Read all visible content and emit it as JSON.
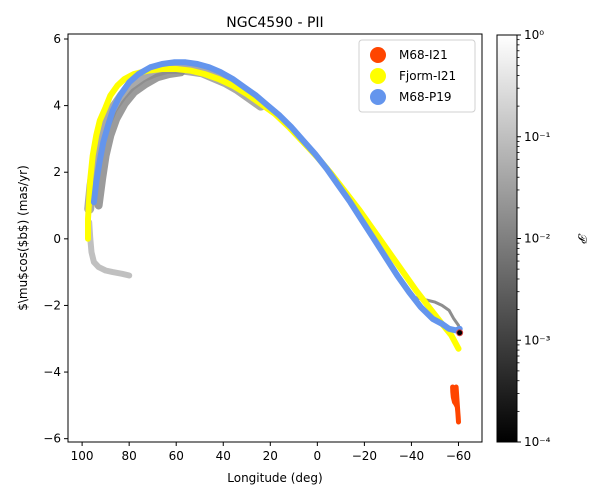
{
  "chart_data": {
    "type": "scatter",
    "title": "NGC4590 - PII",
    "xlabel": "Longitude (deg)",
    "ylabel": "$\\mu$cos($b$) (mas/yr)",
    "xlim": [
      106,
      -70
    ],
    "ylim": [
      -6.1,
      6.15
    ],
    "x_ticks": [
      100,
      80,
      60,
      40,
      20,
      0,
      -20,
      -40,
      -60
    ],
    "x_tick_labels": [
      "100",
      "80",
      "60",
      "40",
      "20",
      "0",
      "−20",
      "−40",
      "−60"
    ],
    "y_ticks": [
      -6,
      -4,
      -2,
      0,
      2,
      4,
      6
    ],
    "y_tick_labels": [
      "−6",
      "−4",
      "−2",
      "0",
      "2",
      "4",
      "6"
    ],
    "grid": false,
    "legend_position": "top-right",
    "colorbar": {
      "label": "𝒫",
      "scale": "log",
      "range": [
        0.0001,
        1
      ],
      "tick_values": [
        0.0001,
        0.001,
        0.01,
        0.1,
        1
      ],
      "tick_labels": [
        "10⁻⁴",
        "10⁻³",
        "10⁻²",
        "10⁻¹",
        "10⁰"
      ],
      "colormap": "grays"
    },
    "series": [
      {
        "name": "M68-I21",
        "color": "#ff4500",
        "points": [
          [
            -57.5,
            -4.45
          ],
          [
            -57.6,
            -4.6
          ],
          [
            -57.8,
            -4.75
          ],
          [
            -58.3,
            -4.9
          ],
          [
            -58.8,
            -4.95
          ],
          [
            -59.2,
            -5.0
          ],
          [
            -59.5,
            -5.05
          ],
          [
            -59.7,
            -5.2
          ],
          [
            -59.9,
            -5.35
          ],
          [
            -60.0,
            -5.5
          ],
          [
            -59.0,
            -4.45
          ],
          [
            -58.0,
            -4.55
          ]
        ]
      },
      {
        "name": "Fjorm-I21",
        "color": "#ffff00",
        "points": [
          [
            97.5,
            0
          ],
          [
            97.5,
            0.6
          ],
          [
            97,
            1.2
          ],
          [
            96.5,
            1.8
          ],
          [
            95.5,
            2.5
          ],
          [
            94,
            3.1
          ],
          [
            92.5,
            3.55
          ],
          [
            90,
            3.95
          ],
          [
            88,
            4.3
          ],
          [
            85,
            4.6
          ],
          [
            82,
            4.8
          ],
          [
            78,
            4.95
          ],
          [
            72,
            5.05
          ],
          [
            66,
            5.1
          ],
          [
            60,
            5.1
          ],
          [
            54,
            5.05
          ],
          [
            48,
            4.95
          ],
          [
            42,
            4.8
          ],
          [
            36,
            4.6
          ],
          [
            30,
            4.35
          ],
          [
            24,
            4.05
          ],
          [
            18,
            3.75
          ],
          [
            12,
            3.35
          ],
          [
            6,
            2.9
          ],
          [
            0,
            2.45
          ],
          [
            -6,
            1.95
          ],
          [
            -12,
            1.4
          ],
          [
            -18,
            0.85
          ],
          [
            -24,
            0.25
          ],
          [
            -30,
            -0.35
          ],
          [
            -36,
            -0.95
          ],
          [
            -42,
            -1.55
          ],
          [
            -48,
            -2.1
          ],
          [
            -53,
            -2.55
          ],
          [
            -57,
            -2.9
          ],
          [
            -60,
            -3.3
          ]
        ]
      },
      {
        "name": "M68-P19",
        "color": "#6495ed",
        "points": [
          [
            95,
            1.1
          ],
          [
            94,
            1.7
          ],
          [
            92.5,
            2.35
          ],
          [
            91,
            2.9
          ],
          [
            89,
            3.4
          ],
          [
            87,
            3.85
          ],
          [
            84,
            4.3
          ],
          [
            80,
            4.7
          ],
          [
            76,
            4.95
          ],
          [
            71,
            5.15
          ],
          [
            66,
            5.25
          ],
          [
            61,
            5.3
          ],
          [
            56,
            5.3
          ],
          [
            51,
            5.25
          ],
          [
            46,
            5.15
          ],
          [
            41,
            5.0
          ],
          [
            36,
            4.8
          ],
          [
            31,
            4.55
          ],
          [
            26,
            4.3
          ],
          [
            21,
            4.0
          ],
          [
            16,
            3.7
          ],
          [
            11,
            3.35
          ],
          [
            6,
            2.95
          ],
          [
            1,
            2.55
          ],
          [
            -4,
            2.1
          ],
          [
            -9,
            1.6
          ],
          [
            -14,
            1.1
          ],
          [
            -19,
            0.55
          ],
          [
            -24,
            0.0
          ],
          [
            -29,
            -0.55
          ],
          [
            -34,
            -1.1
          ],
          [
            -39,
            -1.6
          ],
          [
            -44,
            -2.05
          ],
          [
            -49,
            -2.4
          ],
          [
            -53,
            -2.55
          ],
          [
            -56,
            -2.7
          ],
          [
            -59,
            -2.75
          ],
          [
            -60.5,
            -2.7
          ]
        ]
      }
    ],
    "background_particles": [
      {
        "branch": "upper",
        "points": [
          [
            97,
            0.9
          ],
          [
            96,
            1.6
          ],
          [
            94.5,
            2.3
          ],
          [
            92.5,
            2.9
          ],
          [
            90,
            3.4
          ],
          [
            87,
            3.9
          ],
          [
            83,
            4.3
          ],
          [
            79,
            4.6
          ],
          [
            74,
            4.85
          ],
          [
            69,
            5.0
          ],
          [
            64,
            5.1
          ],
          [
            59,
            5.1
          ],
          [
            54,
            5.05
          ],
          [
            49,
            5.0
          ],
          [
            44,
            4.85
          ],
          [
            39,
            4.7
          ],
          [
            34,
            4.5
          ],
          [
            29,
            4.25
          ],
          [
            24,
            4.0
          ]
        ]
      },
      {
        "branch": "inner",
        "points": [
          [
            93,
            1.0
          ],
          [
            91.5,
            1.8
          ],
          [
            90,
            2.5
          ],
          [
            88,
            3.1
          ],
          [
            85.5,
            3.6
          ],
          [
            82,
            4.05
          ],
          [
            78,
            4.4
          ],
          [
            73,
            4.65
          ],
          [
            68,
            4.85
          ],
          [
            63,
            4.95
          ],
          [
            58,
            5.0
          ]
        ]
      },
      {
        "branch": "lower-tail",
        "points": [
          [
            97,
            0.5
          ],
          [
            96.5,
            0
          ],
          [
            96,
            -0.4
          ],
          [
            95,
            -0.7
          ],
          [
            93,
            -0.85
          ],
          [
            90,
            -0.95
          ],
          [
            87,
            -1.0
          ],
          [
            83,
            -1.05
          ],
          [
            80,
            -1.1
          ]
        ]
      },
      {
        "branch": "right-end",
        "points": [
          [
            -41,
            -1.75
          ],
          [
            -44,
            -1.8
          ],
          [
            -47,
            -1.85
          ],
          [
            -50,
            -1.9
          ],
          [
            -53,
            -2.0
          ],
          [
            -56,
            -2.15
          ],
          [
            -58,
            -2.4
          ],
          [
            -60,
            -2.6
          ]
        ]
      }
    ],
    "progenitor": {
      "x": -60.5,
      "y": -2.82,
      "color": "#000000"
    }
  }
}
